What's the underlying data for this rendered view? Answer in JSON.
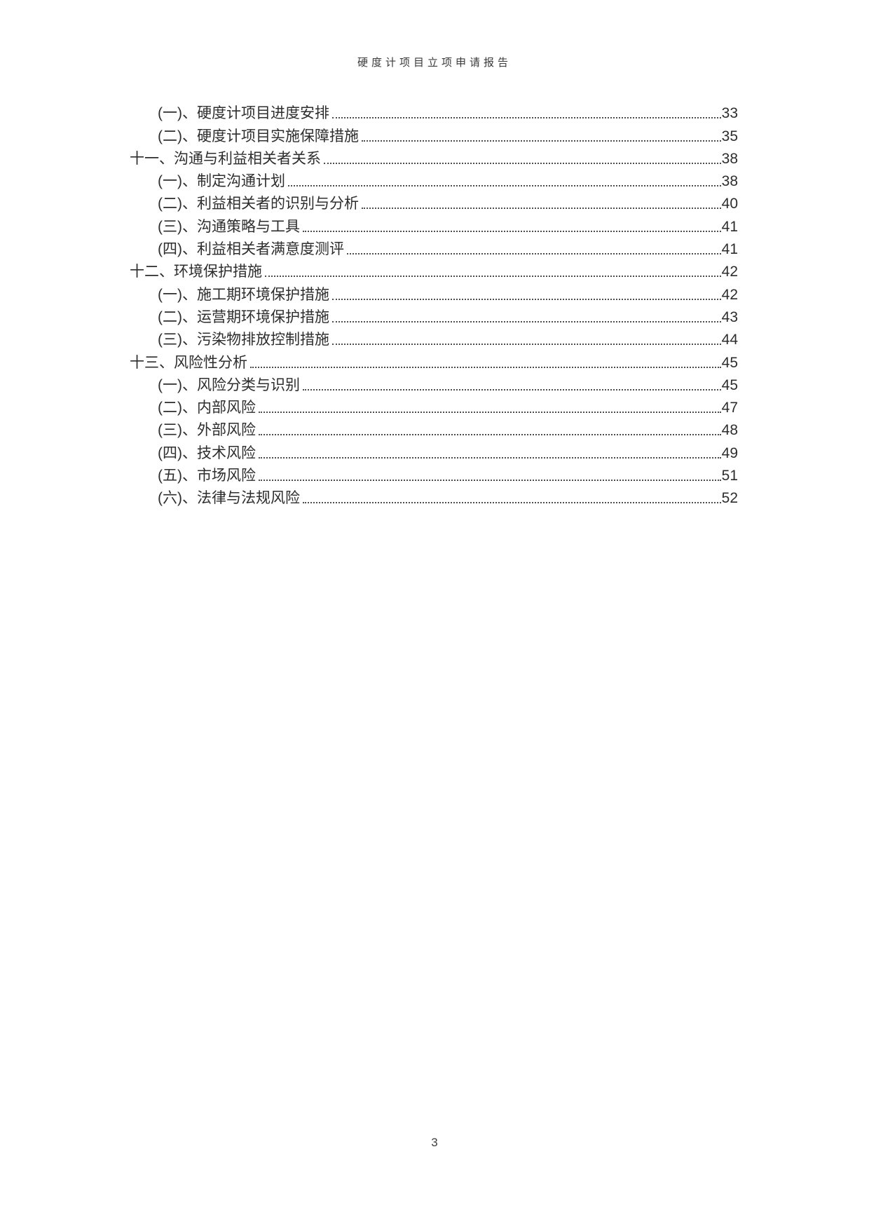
{
  "header": {
    "title": "硬度计项目立项申请报告"
  },
  "footer": {
    "page_number": "3"
  },
  "toc": {
    "entries": [
      {
        "level": 2,
        "label": "(一)、硬度计项目进度安排",
        "page": "33"
      },
      {
        "level": 2,
        "label": "(二)、硬度计项目实施保障措施",
        "page": "35"
      },
      {
        "level": 1,
        "label": "十一、沟通与利益相关者关系",
        "page": "38"
      },
      {
        "level": 2,
        "label": "(一)、制定沟通计划",
        "page": "38"
      },
      {
        "level": 2,
        "label": "(二)、利益相关者的识别与分析",
        "page": "40"
      },
      {
        "level": 2,
        "label": "(三)、沟通策略与工具",
        "page": "41"
      },
      {
        "level": 2,
        "label": "(四)、利益相关者满意度测评",
        "page": "41"
      },
      {
        "level": 1,
        "label": "十二、环境保护措施",
        "page": "42"
      },
      {
        "level": 2,
        "label": "(一)、施工期环境保护措施",
        "page": "42"
      },
      {
        "level": 2,
        "label": "(二)、运营期环境保护措施",
        "page": "43"
      },
      {
        "level": 2,
        "label": "(三)、污染物排放控制措施",
        "page": "44"
      },
      {
        "level": 1,
        "label": "十三、风险性分析",
        "page": "45"
      },
      {
        "level": 2,
        "label": "(一)、风险分类与识别",
        "page": "45"
      },
      {
        "level": 2,
        "label": "(二)、内部风险",
        "page": "47"
      },
      {
        "level": 2,
        "label": "(三)、外部风险",
        "page": "48"
      },
      {
        "level": 2,
        "label": "(四)、技术风险",
        "page": "49"
      },
      {
        "level": 2,
        "label": "(五)、市场风险",
        "page": "51"
      },
      {
        "level": 2,
        "label": "(六)、法律与法规风险",
        "page": "52"
      }
    ]
  }
}
